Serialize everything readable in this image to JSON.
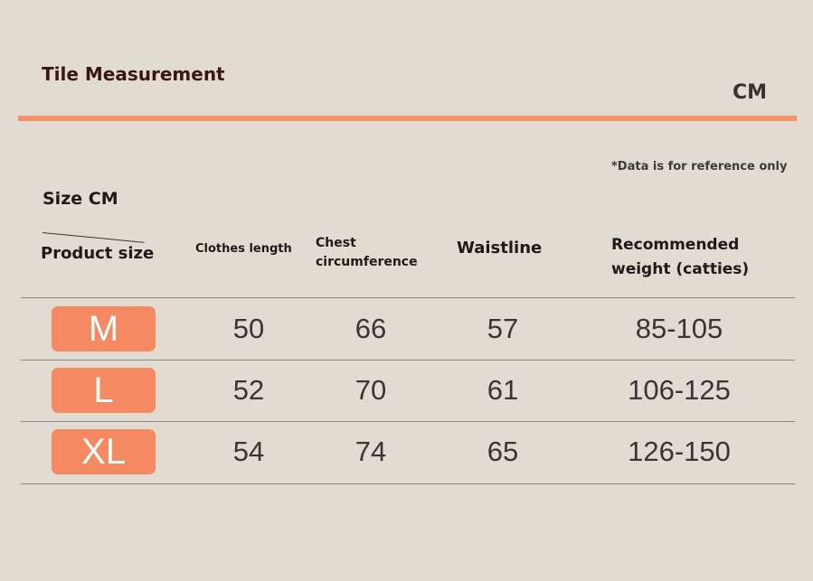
{
  "header": {
    "title": "Tile Measurement",
    "unit": "CM",
    "note": "*Data is for reference only"
  },
  "table": {
    "corner_top": "Size CM",
    "corner_bottom": "Product size",
    "columns": {
      "length": "Clothes length",
      "chest_line1": "Chest",
      "chest_line2": "circumference",
      "waist": "Waistline",
      "weight_line1": "Recommended",
      "weight_line2": "weight (catties)"
    },
    "rows": [
      {
        "size": "M",
        "length": "50",
        "chest": "66",
        "waist": "57",
        "weight": "85-105"
      },
      {
        "size": "L",
        "length": "52",
        "chest": "70",
        "waist": "61",
        "weight": "106-125"
      },
      {
        "size": "XL",
        "length": "54",
        "chest": "74",
        "waist": "65",
        "weight": "126-150"
      }
    ]
  },
  "colors": {
    "background": "#e2dbd2",
    "accent": "#f19268",
    "badge": "#f58a62",
    "title": "#3a1614"
  }
}
